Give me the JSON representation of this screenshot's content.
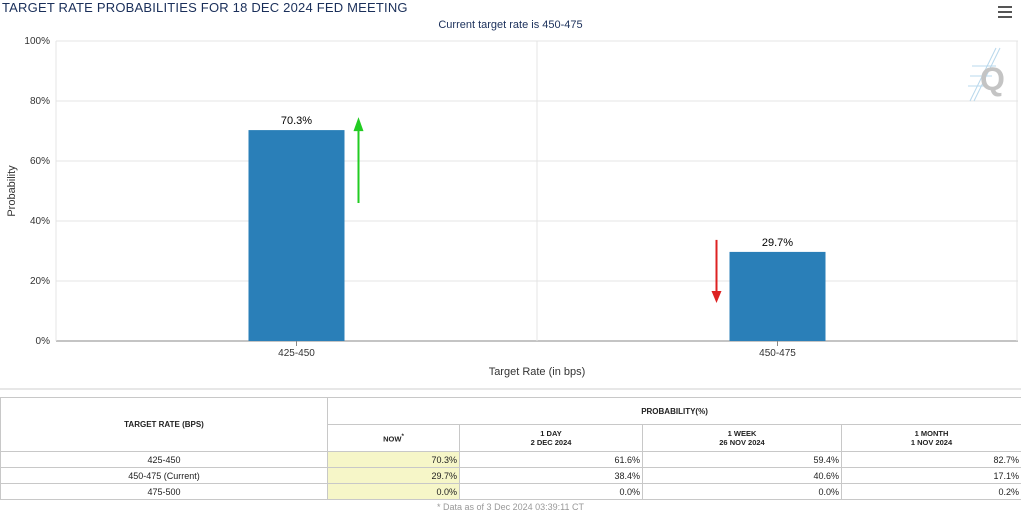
{
  "title": "TARGET RATE PROBABILITIES FOR 18 DEC 2024 FED MEETING",
  "subtitle": "Current target rate is 450-475",
  "menu_icon": "hamburger-menu-icon",
  "logo_icon": "quikstrike-q-logo-icon",
  "colors": {
    "bar": "#2a7fb8",
    "up_arrow": "#22cc22",
    "down_arrow": "#dd2222",
    "now_cell": "#f6f6c8"
  },
  "chart_data": {
    "type": "bar",
    "categories": [
      "425-450",
      "450-475"
    ],
    "values": [
      70.3,
      29.7
    ],
    "data_labels": [
      "70.3%",
      "29.7%"
    ],
    "changes": [
      "up",
      "down"
    ],
    "xlabel": "Target Rate (in bps)",
    "ylabel": "Probability",
    "ylim": [
      0,
      100
    ],
    "yticks": [
      0,
      20,
      40,
      60,
      80,
      100
    ],
    "ytick_labels": [
      "0%",
      "20%",
      "40%",
      "60%",
      "80%",
      "100%"
    ],
    "grid": true,
    "legend": "none"
  },
  "table": {
    "col_rate": "TARGET RATE (BPS)",
    "col_prob": "PROBABILITY(%)",
    "sub_cols": [
      {
        "line1": "NOW",
        "line2": ""
      },
      {
        "line1": "1 DAY",
        "line2": "2 DEC 2024"
      },
      {
        "line1": "1 WEEK",
        "line2": "26 NOV 2024"
      },
      {
        "line1": "1 MONTH",
        "line2": "1 NOV 2024"
      }
    ],
    "rows": [
      {
        "rate": "425-450",
        "now": "70.3%",
        "day": "61.6%",
        "week": "59.4%",
        "month": "82.7%"
      },
      {
        "rate": "450-475 (Current)",
        "now": "29.7%",
        "day": "38.4%",
        "week": "40.6%",
        "month": "17.1%"
      },
      {
        "rate": "475-500",
        "now": "0.0%",
        "day": "0.0%",
        "week": "0.0%",
        "month": "0.2%"
      }
    ],
    "footnote": "* Data as of 3 Dec 2024 03:39:11 CT"
  }
}
